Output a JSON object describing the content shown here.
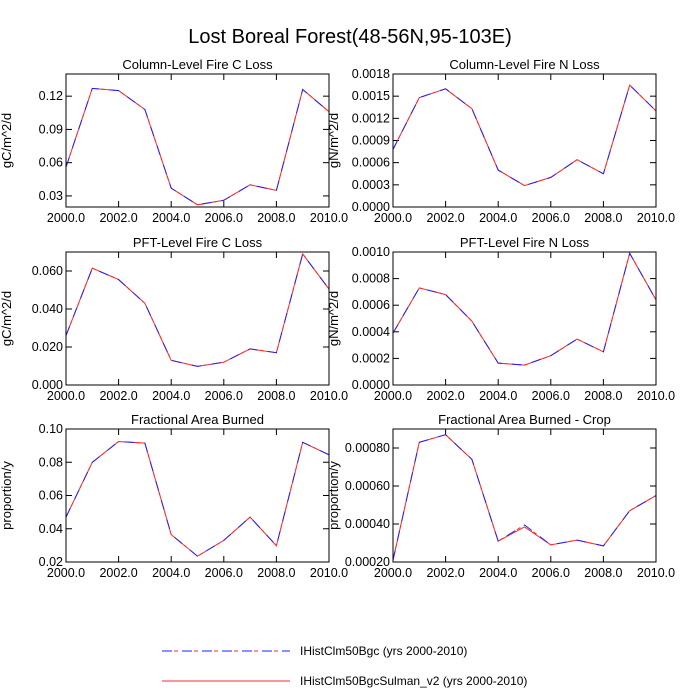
{
  "figure": {
    "title": "Lost Boreal Forest(48-56N,95-103E)"
  },
  "legend": [
    {
      "label": "IHistClm50Bgc (yrs 2000-2010)",
      "color": "#1f1fff",
      "style": "dashed"
    },
    {
      "label": "IHistClm50BgcSulman_v2 (yrs 2000-2010)",
      "color": "#ff2a2a",
      "style": "solid"
    }
  ],
  "chart_data": [
    {
      "type": "line",
      "title": "Column-Level Fire C Loss",
      "xlabel": "",
      "ylabel": "gC/m^2/d",
      "x": [
        2000,
        2001,
        2002,
        2003,
        2004,
        2005,
        2006,
        2007,
        2008,
        2009,
        2010
      ],
      "xlim": [
        2000,
        2010
      ],
      "ylim": [
        0.02,
        0.14
      ],
      "xticks": [
        2000,
        2002,
        2004,
        2006,
        2008,
        2010
      ],
      "xticklabels": [
        "2000.0",
        "2002.0",
        "2004.0",
        "2006.0",
        "2008.0",
        "2010.0"
      ],
      "yticks": [
        0.03,
        0.06,
        0.09,
        0.12
      ],
      "yticklabels": [
        "0.03",
        "0.06",
        "0.09",
        "0.12"
      ],
      "series": [
        {
          "name": "IHistClm50Bgc (yrs 2000-2010)",
          "values": [
            0.056,
            0.127,
            0.125,
            0.108,
            0.037,
            0.022,
            0.026,
            0.04,
            0.035,
            0.126,
            0.106
          ]
        },
        {
          "name": "IHistClm50BgcSulman_v2 (yrs 2000-2010)",
          "values": [
            0.056,
            0.127,
            0.125,
            0.108,
            0.037,
            0.022,
            0.026,
            0.04,
            0.035,
            0.126,
            0.106
          ]
        }
      ]
    },
    {
      "type": "line",
      "title": "Column-Level Fire N Loss",
      "xlabel": "",
      "ylabel": "gN/m^2/d",
      "x": [
        2000,
        2001,
        2002,
        2003,
        2004,
        2005,
        2006,
        2007,
        2008,
        2009,
        2010
      ],
      "xlim": [
        2000,
        2010
      ],
      "ylim": [
        0.0,
        0.0018
      ],
      "xticks": [
        2000,
        2002,
        2004,
        2006,
        2008,
        2010
      ],
      "xticklabels": [
        "2000.0",
        "2002.0",
        "2004.0",
        "2006.0",
        "2008.0",
        "2010.0"
      ],
      "yticks": [
        0.0,
        0.0003,
        0.0006,
        0.0009,
        0.0012,
        0.0015,
        0.0018
      ],
      "yticklabels": [
        "0.0000",
        "0.0003",
        "0.0006",
        "0.0009",
        "0.0012",
        "0.0015",
        "0.0018"
      ],
      "series": [
        {
          "name": "IHistClm50Bgc (yrs 2000-2010)",
          "values": [
            0.00078,
            0.00148,
            0.0016,
            0.00133,
            0.0005,
            0.00029,
            0.0004,
            0.00064,
            0.00045,
            0.00165,
            0.0013
          ]
        },
        {
          "name": "IHistClm50BgcSulman_v2 (yrs 2000-2010)",
          "values": [
            0.00078,
            0.00148,
            0.0016,
            0.00133,
            0.0005,
            0.00029,
            0.0004,
            0.00064,
            0.00045,
            0.00165,
            0.0013
          ]
        }
      ]
    },
    {
      "type": "line",
      "title": "PFT-Level Fire C Loss",
      "xlabel": "",
      "ylabel": "gC/m^2/d",
      "x": [
        2000,
        2001,
        2002,
        2003,
        2004,
        2005,
        2006,
        2007,
        2008,
        2009,
        2010
      ],
      "xlim": [
        2000,
        2010
      ],
      "ylim": [
        0.0,
        0.07
      ],
      "xticks": [
        2000,
        2002,
        2004,
        2006,
        2008,
        2010
      ],
      "xticklabels": [
        "2000.0",
        "2002.0",
        "2004.0",
        "2006.0",
        "2008.0",
        "2010.0"
      ],
      "yticks": [
        0.0,
        0.02,
        0.04,
        0.06
      ],
      "yticklabels": [
        "0.000",
        "0.020",
        "0.040",
        "0.060"
      ],
      "series": [
        {
          "name": "IHistClm50Bgc (yrs 2000-2010)",
          "values": [
            0.026,
            0.0615,
            0.0555,
            0.043,
            0.013,
            0.0098,
            0.012,
            0.019,
            0.017,
            0.069,
            0.0505
          ]
        },
        {
          "name": "IHistClm50BgcSulman_v2 (yrs 2000-2010)",
          "values": [
            0.026,
            0.0615,
            0.0555,
            0.043,
            0.013,
            0.0098,
            0.012,
            0.019,
            0.017,
            0.069,
            0.0505
          ]
        }
      ]
    },
    {
      "type": "line",
      "title": "PFT-Level Fire N Loss",
      "xlabel": "",
      "ylabel": "gN/m^2/d",
      "x": [
        2000,
        2001,
        2002,
        2003,
        2004,
        2005,
        2006,
        2007,
        2008,
        2009,
        2010
      ],
      "xlim": [
        2000,
        2010
      ],
      "ylim": [
        0.0,
        0.001
      ],
      "xticks": [
        2000,
        2002,
        2004,
        2006,
        2008,
        2010
      ],
      "xticklabels": [
        "2000.0",
        "2002.0",
        "2004.0",
        "2006.0",
        "2008.0",
        "2010.0"
      ],
      "yticks": [
        0.0,
        0.0002,
        0.0004,
        0.0006,
        0.0008,
        0.001
      ],
      "yticklabels": [
        "0.0000",
        "0.0002",
        "0.0004",
        "0.0006",
        "0.0008",
        "0.0010"
      ],
      "series": [
        {
          "name": "IHistClm50Bgc (yrs 2000-2010)",
          "values": [
            0.00039,
            0.00073,
            0.00068,
            0.00048,
            0.000165,
            0.00015,
            0.00022,
            0.000345,
            0.00025,
            0.00099,
            0.00064
          ]
        },
        {
          "name": "IHistClm50BgcSulman_v2 (yrs 2000-2010)",
          "values": [
            0.00039,
            0.00073,
            0.00068,
            0.00048,
            0.000165,
            0.00015,
            0.00022,
            0.000345,
            0.00025,
            0.00099,
            0.00064
          ]
        }
      ]
    },
    {
      "type": "line",
      "title": "Fractional Area Burned",
      "xlabel": "",
      "ylabel": "proportion/y",
      "x": [
        2000,
        2001,
        2002,
        2003,
        2004,
        2005,
        2006,
        2007,
        2008,
        2009,
        2010
      ],
      "xlim": [
        2000,
        2010
      ],
      "ylim": [
        0.02,
        0.1
      ],
      "xticks": [
        2000,
        2002,
        2004,
        2006,
        2008,
        2010
      ],
      "xticklabels": [
        "2000.0",
        "2002.0",
        "2004.0",
        "2006.0",
        "2008.0",
        "2010.0"
      ],
      "yticks": [
        0.02,
        0.04,
        0.06,
        0.08,
        0.1
      ],
      "yticklabels": [
        "0.02",
        "0.04",
        "0.06",
        "0.08",
        "0.10"
      ],
      "series": [
        {
          "name": "IHistClm50Bgc (yrs 2000-2010)",
          "values": [
            0.047,
            0.08,
            0.0925,
            0.0915,
            0.0365,
            0.0235,
            0.033,
            0.047,
            0.0298,
            0.092,
            0.0845
          ]
        },
        {
          "name": "IHistClm50BgcSulman_v2 (yrs 2000-2010)",
          "values": [
            0.047,
            0.08,
            0.0925,
            0.0915,
            0.0365,
            0.0235,
            0.033,
            0.047,
            0.0298,
            0.092,
            0.0845
          ]
        }
      ]
    },
    {
      "type": "line",
      "title": "Fractional Area Burned - Crop",
      "xlabel": "",
      "ylabel": "proportion/y",
      "x": [
        2000,
        2001,
        2002,
        2003,
        2004,
        2005,
        2006,
        2007,
        2008,
        2009,
        2010
      ],
      "xlim": [
        2000,
        2010
      ],
      "ylim": [
        0.0002,
        0.0009
      ],
      "xticks": [
        2000,
        2002,
        2004,
        2006,
        2008,
        2010
      ],
      "xticklabels": [
        "2000.0",
        "2002.0",
        "2004.0",
        "2006.0",
        "2008.0",
        "2010.0"
      ],
      "yticks": [
        0.0002,
        0.0004,
        0.0006,
        0.0008
      ],
      "yticklabels": [
        "0.00020",
        "0.00040",
        "0.00060",
        "0.00080"
      ],
      "series": [
        {
          "name": "IHistClm50Bgc (yrs 2000-2010)",
          "values": [
            0.00021,
            0.00083,
            0.00087,
            0.00074,
            0.00031,
            0.000395,
            0.00029,
            0.000315,
            0.000285,
            0.00047,
            0.00055
          ]
        },
        {
          "name": "IHistClm50BgcSulman_v2 (yrs 2000-2010)",
          "values": [
            0.00021,
            0.00083,
            0.00087,
            0.00074,
            0.00031,
            0.000385,
            0.00029,
            0.000315,
            0.000285,
            0.00047,
            0.00055
          ]
        }
      ]
    }
  ]
}
